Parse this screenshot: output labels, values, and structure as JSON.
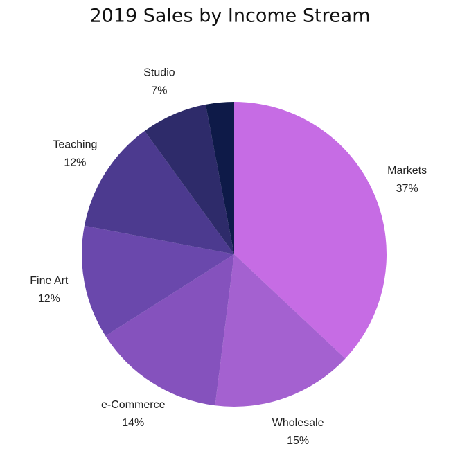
{
  "chart_data": {
    "type": "pie",
    "title": "2019 Sales by Income Stream",
    "categories": [
      "Markets",
      "Wholesale",
      "e-Commerce",
      "Fine Art",
      "Teaching",
      "Studio",
      null
    ],
    "values": [
      37,
      15,
      14,
      12,
      12,
      7,
      3
    ],
    "value_labels": [
      "37%",
      "15%",
      "14%",
      "12%",
      "12%",
      "7%",
      null
    ],
    "colors": [
      "#c66ce4",
      "#a461d0",
      "#8552bd",
      "#6a48ac",
      "#4c3a8f",
      "#2e2b6a",
      "#0e1a48"
    ]
  }
}
